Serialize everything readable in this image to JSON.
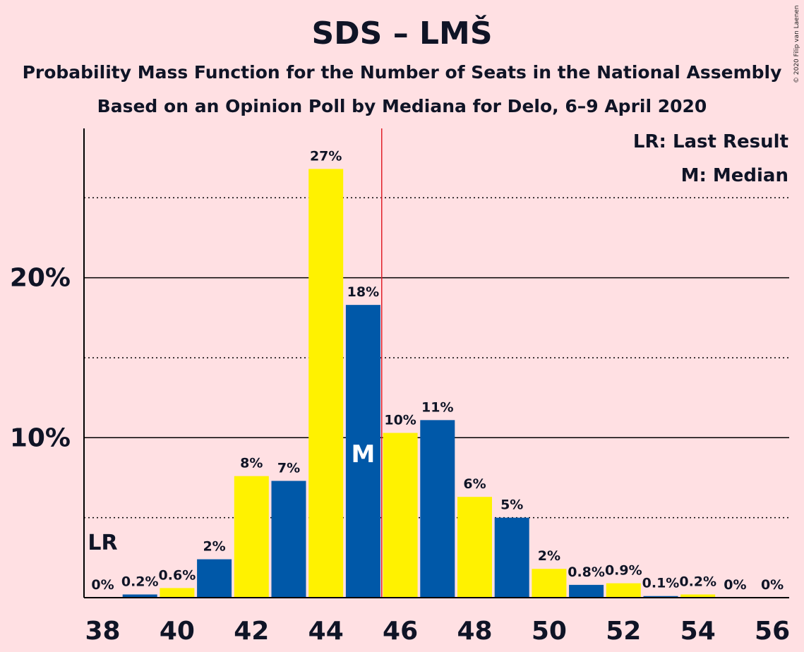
{
  "title": "SDS – LMŠ",
  "subtitle1": "Probability Mass Function for the Number of Seats in the National Assembly",
  "subtitle2": "Based on an Opinion Poll by Mediana for Delo, 6–9 April 2020",
  "copyright": "© 2020 Filip van Laenen",
  "legend": {
    "last_result": "LR: Last Result",
    "median": "M: Median"
  },
  "colors": {
    "background": "#FFE0E3",
    "primary": "#0058A8",
    "secondary": "#FFF200",
    "median_line": "#E0202A",
    "text": "#0F1426"
  },
  "chart_data": {
    "type": "bar",
    "title": "SDS – LMŠ",
    "x": [
      38,
      39,
      40,
      41,
      42,
      43,
      44,
      45,
      46,
      47,
      48,
      49,
      50,
      51,
      52,
      53,
      54,
      55,
      56
    ],
    "values": [
      0,
      0.2,
      0.6,
      2.4,
      7.6,
      7.3,
      26.8,
      18.3,
      10.3,
      11.1,
      6.3,
      5.0,
      1.8,
      0.8,
      0.9,
      0.1,
      0.2,
      0,
      0
    ],
    "labels": [
      "0%",
      "0.2%",
      "0.6%",
      "2%",
      "8%",
      "7%",
      "27%",
      "18%",
      "10%",
      "11%",
      "6%",
      "5%",
      "2%",
      "0.8%",
      "0.9%",
      "0.1%",
      "0.2%",
      "0%",
      "0%"
    ],
    "x_tick_labels": [
      "38",
      "40",
      "42",
      "44",
      "46",
      "48",
      "50",
      "52",
      "54",
      "56"
    ],
    "y_tick_values": [
      10,
      20
    ],
    "y_tick_labels": [
      "10%",
      "20%"
    ],
    "ylim": [
      0,
      29.3
    ],
    "dotted_grid": [
      5,
      15,
      25
    ],
    "last_result_seat": 38,
    "last_result_label": "LR",
    "median_seat": 45,
    "median_label": "M"
  }
}
